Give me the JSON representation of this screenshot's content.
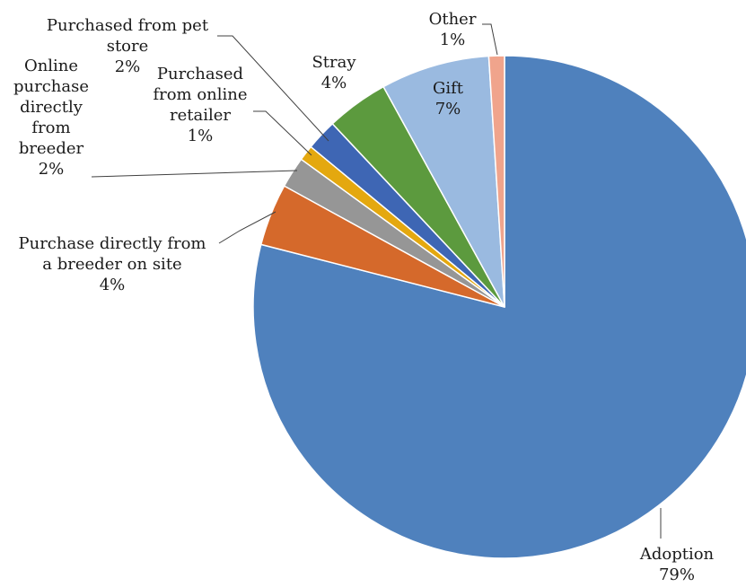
{
  "chart_data": {
    "type": "pie",
    "title": "",
    "legend": "none",
    "slices": [
      {
        "label": "Adoption",
        "lines": [
          "Adoption"
        ],
        "pct_label": "79%",
        "value": 79,
        "color": "#4F81BD"
      },
      {
        "label": "Purchase directly from a breeder on site",
        "lines": [
          "Purchase directly from",
          "a breeder on site"
        ],
        "pct_label": "4%",
        "value": 4,
        "color": "#D5692B"
      },
      {
        "label": "Online purchase directly from breeder",
        "lines": [
          "Online",
          "purchase",
          "directly",
          "from",
          "breeder"
        ],
        "pct_label": "2%",
        "value": 2,
        "color": "#969696"
      },
      {
        "label": "Purchased from online retailer",
        "lines": [
          "Purchased",
          "from online",
          "retailer"
        ],
        "pct_label": "1%",
        "value": 1,
        "color": "#E4A80F"
      },
      {
        "label": "Purchased from pet store",
        "lines": [
          "Purchased from pet",
          "store"
        ],
        "pct_label": "2%",
        "value": 2,
        "color": "#3E66B4"
      },
      {
        "label": "Stray",
        "lines": [
          "Stray"
        ],
        "pct_label": "4%",
        "value": 4,
        "color": "#5C9A3E"
      },
      {
        "label": "Gift",
        "lines": [
          "Gift"
        ],
        "pct_label": "7%",
        "value": 7,
        "color": "#9ABAE0"
      },
      {
        "label": "Other",
        "lines": [
          "Other"
        ],
        "pct_label": "1%",
        "value": 1,
        "color": "#F0A48C"
      }
    ]
  }
}
